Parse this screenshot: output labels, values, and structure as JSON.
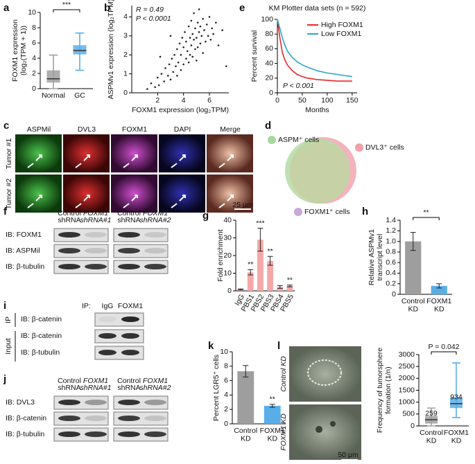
{
  "chart_data": [
    {
      "type": "box",
      "categories": [
        "Normal",
        "GC"
      ],
      "colors": [
        "#a0a0a0",
        "#5aaee8"
      ],
      "boxes": [
        {
          "whisker_low": 0,
          "q1": 0.8,
          "median": 1.3,
          "q3": 2.4,
          "whisker_high": 4.4
        },
        {
          "whisker_low": 2.4,
          "q1": 4.5,
          "median": 5.0,
          "q3": 5.7,
          "whisker_high": 7.3
        }
      ],
      "ylim": [
        0,
        10
      ],
      "yticks": [
        0,
        2,
        4,
        6,
        8,
        10
      ],
      "ylabel": "FOXM1 expression",
      "ylabel2": "(log₂(TPM + 1))",
      "bracket_label": "***"
    },
    {
      "type": "scatter",
      "color": "#222222",
      "x": [
        1.2,
        1.5,
        1.8,
        2.0,
        2.1,
        2.3,
        2.5,
        2.6,
        2.8,
        2.9,
        3.0,
        3.1,
        3.2,
        3.3,
        3.4,
        3.5,
        3.5,
        3.6,
        3.7,
        3.8,
        3.8,
        3.9,
        4.0,
        4.0,
        4.1,
        4.2,
        4.2,
        4.3,
        4.4,
        4.4,
        4.5,
        4.5,
        4.6,
        4.6,
        4.7,
        4.7,
        4.8,
        4.8,
        4.9,
        4.9,
        5.0,
        5.0,
        5.1,
        5.1,
        5.2,
        5.2,
        5.3,
        5.3,
        5.4,
        5.5,
        5.5,
        5.6,
        5.7,
        5.8,
        5.9,
        6.0,
        6.1,
        6.2,
        6.3,
        6.5,
        6.7,
        7.0,
        7.3,
        3.0,
        2.2
      ],
      "values": [
        0.2,
        0.5,
        0.3,
        0.8,
        0.4,
        1.0,
        0.6,
        1.3,
        0.9,
        1.5,
        0.7,
        1.8,
        1.1,
        2.0,
        1.4,
        0.9,
        2.3,
        1.6,
        2.6,
        1.2,
        2.0,
        2.9,
        1.5,
        2.4,
        3.2,
        1.8,
        2.7,
        2.2,
        3.5,
        1.6,
        2.9,
        2.0,
        3.8,
        2.5,
        1.9,
        3.1,
        2.8,
        4.2,
        2.3,
        3.4,
        1.7,
        2.9,
        3.7,
        2.4,
        3.2,
        4.4,
        2.6,
        3.5,
        3.0,
        2.1,
        3.9,
        3.3,
        2.7,
        3.6,
        3.0,
        4.0,
        2.8,
        3.4,
        3.1,
        3.7,
        2.5,
        3.3,
        1.4,
        3.0,
        1.9
      ],
      "xlim": [
        0,
        7.5
      ],
      "xticks": [
        2,
        4,
        6
      ],
      "ylim": [
        0,
        4.6
      ],
      "yticks": [
        0,
        1,
        2,
        3,
        4
      ],
      "xlabel": "FOXM1 expression (log₂TPM)",
      "ylabel": "ASPMv1 expression (log₂TPM)",
      "annotations": [
        "R = 0.49",
        "P < 0.0001"
      ]
    },
    {
      "type": "line",
      "title": "KM Plotter data sets (n = 592)",
      "x": [
        0,
        5,
        10,
        15,
        20,
        30,
        40,
        50,
        60,
        80,
        100,
        120,
        150
      ],
      "series": [
        {
          "name": "High FOXM1",
          "color": "#e8262c",
          "values": [
            100,
            75,
            55,
            45,
            38,
            30,
            25,
            22,
            20,
            18,
            17,
            16,
            16
          ]
        },
        {
          "name": "Low FOXM1",
          "color": "#2aa6c8",
          "values": [
            100,
            88,
            75,
            65,
            57,
            48,
            42,
            38,
            35,
            30,
            27,
            25,
            22
          ]
        }
      ],
      "xlim": [
        0,
        160
      ],
      "xticks": [
        0,
        50,
        100,
        150
      ],
      "ylim": [
        0,
        100
      ],
      "yticks": [
        0,
        20,
        40,
        60,
        80,
        100
      ],
      "xlabel": "Months",
      "ylabel": "Percent survival",
      "annotation": "P < 0.001",
      "legend": "upper right"
    },
    {
      "type": "bar",
      "categories": [
        "IgG",
        "PBS1",
        "PBS2",
        "PBS3",
        "PBS4",
        "PBS5"
      ],
      "color": "#f4a9a8",
      "values": [
        0.8,
        10.5,
        29,
        17,
        2.2,
        2.8
      ],
      "errors": [
        0.3,
        1.5,
        6.5,
        2.5,
        0.8,
        0.5
      ],
      "significance": [
        null,
        "**",
        "***",
        "**",
        null,
        "**"
      ],
      "ylim": [
        0,
        40
      ],
      "yticks": [
        0,
        10,
        20,
        30,
        40
      ],
      "ylabel": "Fold enrichment"
    },
    {
      "type": "bar",
      "categories": [
        "Control KD",
        "FOXM1 KD"
      ],
      "colors": [
        "#9e9e9e",
        "#5aaee8"
      ],
      "values": [
        1.0,
        0.16
      ],
      "errors": [
        0.17,
        0.04
      ],
      "ylim": [
        0,
        1.4
      ],
      "yticks": [
        0,
        0.2,
        0.4,
        0.6,
        0.8,
        {
          "value": 1,
          "label": "1.0"
        },
        1.2,
        1.4
      ],
      "ylabel": "Relative ASPMv1",
      "ylabel2": "transcript level",
      "bracket_label": "**"
    },
    {
      "type": "bar",
      "categories": [
        "Control KD",
        "FOXM1 KD"
      ],
      "colors": [
        "#9e9e9e",
        "#5aaee8"
      ],
      "values": [
        7.3,
        2.5
      ],
      "errors": [
        0.8,
        0.2
      ],
      "significance": [
        null,
        "**"
      ],
      "ylim": [
        0,
        10
      ],
      "yticks": [
        0,
        2,
        4,
        6,
        8,
        10
      ],
      "ylabel": "Percent LGR5⁺ cells"
    },
    {
      "type": "box",
      "categories": [
        "Control KD",
        "FOXM1 KD"
      ],
      "colors": [
        "#9e9e9e",
        "#5aaee8"
      ],
      "boxes": [
        {
          "whisker_low": 0,
          "q1": 100,
          "median": 259,
          "q3": 420,
          "whisker_high": 750
        },
        {
          "whisker_low": 350,
          "q1": 750,
          "median": 934,
          "q3": 1200,
          "whisker_high": 2650
        }
      ],
      "median_labels": true,
      "ylim": [
        0,
        3000
      ],
      "yticks": [
        0,
        500,
        1000,
        1500,
        2000,
        2500,
        3000
      ],
      "ylabel": "Frequency of tumorsphere",
      "ylabel2": "formation (1/n)",
      "bracket_label": "P = 0.042"
    }
  ],
  "figure": {
    "panel_labels": [
      "a",
      "b",
      "c",
      "d",
      "e",
      "f",
      "g",
      "h",
      "i",
      "j",
      "k",
      "l"
    ],
    "c": {
      "columns": [
        "ASPMil",
        "DVL3",
        "FOXM1",
        "DAPI",
        "Merge"
      ],
      "rows": [
        "Tumor #1",
        "Tumor #2"
      ],
      "scale_bar": "25 μm"
    },
    "d": {
      "labels": [
        "ASPM⁺ cells",
        "DVL3⁺ cells",
        "FOXM1⁺ cells"
      ]
    },
    "f": {
      "lanes": [
        [
          "Control",
          "shRNA"
        ],
        [
          "FOXM1",
          "shRNA#1"
        ],
        [
          "Control",
          "shRNA"
        ],
        [
          "FOXM1",
          "shRNA#2"
        ]
      ],
      "rows": [
        "IB: FOXM1",
        "IB: ASPMil",
        "IB: β-tubulin"
      ]
    },
    "i": {
      "ip_label": "IP:",
      "lanes": [
        "IgG",
        "FOXM1"
      ],
      "groups": [
        "IP",
        "Input"
      ],
      "rows": [
        "IB: β-catenin",
        "IB: β-catenin",
        "IB: β-tubulin"
      ]
    },
    "j": {
      "lanes": [
        [
          "Control",
          "shRNA"
        ],
        [
          "FOXM1",
          "shRNA#1"
        ],
        [
          "Control",
          "shRNA"
        ],
        [
          "FOXM1",
          "shRNA#2"
        ]
      ],
      "rows": [
        "IB: DVL3",
        "IB: β-catenin",
        "IB: β-tubulin"
      ]
    },
    "l": {
      "images": [
        "Control KD",
        "FOXM1 KD"
      ],
      "scale_bar": "50 μm"
    }
  }
}
